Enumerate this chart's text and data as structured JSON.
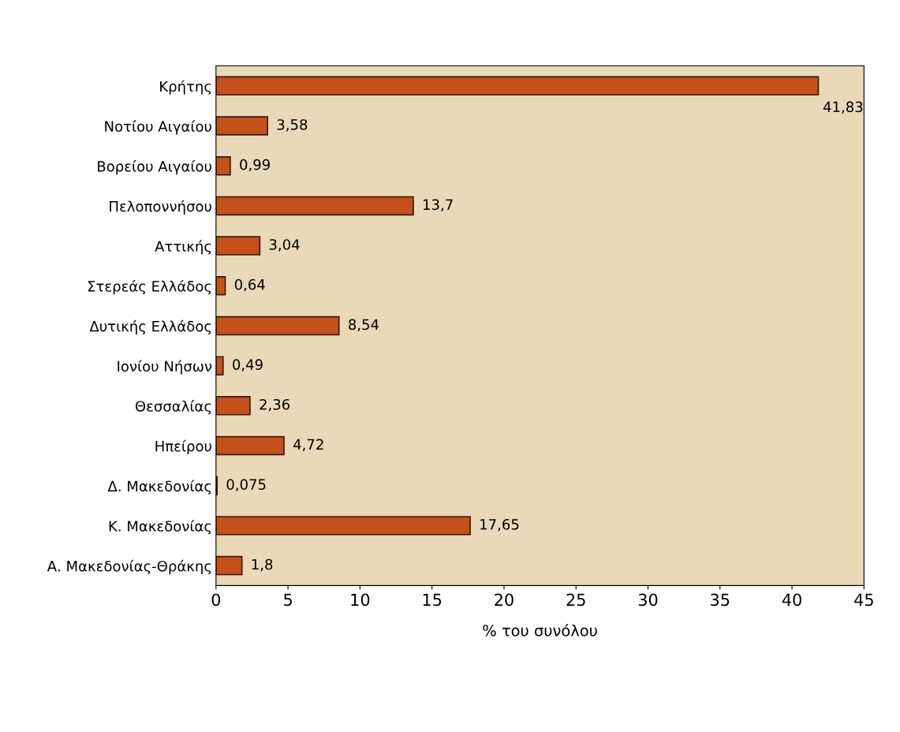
{
  "chart_data": {
    "type": "bar",
    "orientation": "horizontal",
    "xlabel": "% του συνόλου",
    "categories": [
      "Κρήτης",
      "Νοτίου Αιγαίου",
      "Βορείου Αιγαίου",
      "Πελοποννήσου",
      "Αττικής",
      "Στερεάς Ελλάδος",
      "Δυτικής Ελλάδος",
      "Ιονίου Νήσων",
      "Θεσσαλίας",
      "Ηπείρου",
      "Δ. Μακεδονίας",
      "Κ. Μακεδονίας",
      "Α. Μακεδονίας-Θράκης"
    ],
    "values": [
      41.83,
      3.58,
      0.99,
      13.7,
      3.04,
      0.64,
      8.54,
      0.49,
      2.36,
      4.72,
      0.075,
      17.65,
      1.8
    ],
    "value_labels": [
      "41,83",
      "3,58",
      "0,99",
      "13,7",
      "3,04",
      "0,64",
      "8,54",
      "0,49",
      "2,36",
      "4,72",
      "0,075",
      "17,65",
      "1,8"
    ],
    "color": "#c4501c",
    "xlim": [
      0,
      45
    ],
    "xticks": [
      0,
      5,
      10,
      15,
      20,
      25,
      30,
      35,
      40,
      45
    ],
    "grid": false,
    "legend": false
  }
}
